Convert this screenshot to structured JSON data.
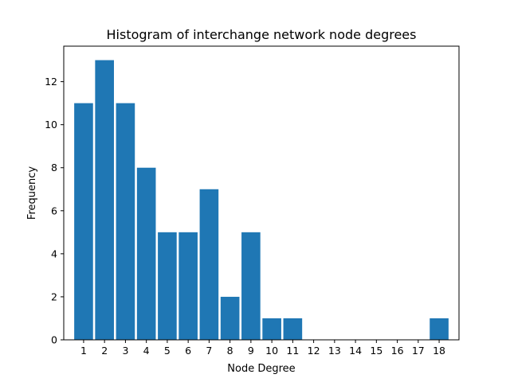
{
  "chart_data": {
    "type": "bar",
    "title": "Histogram of interchange network node degrees",
    "xlabel": "Node Degree",
    "ylabel": "Frequency",
    "categories": [
      "1",
      "2",
      "3",
      "4",
      "5",
      "6",
      "7",
      "8",
      "9",
      "10",
      "11",
      "12",
      "13",
      "14",
      "15",
      "16",
      "17",
      "18"
    ],
    "values": [
      11,
      13,
      11,
      8,
      5,
      5,
      7,
      2,
      5,
      1,
      1,
      0,
      0,
      0,
      0,
      0,
      0,
      1
    ],
    "x_ticks": [
      "1",
      "2",
      "3",
      "4",
      "5",
      "6",
      "7",
      "8",
      "9",
      "10",
      "11",
      "12",
      "13",
      "14",
      "15",
      "16",
      "17",
      "18"
    ],
    "y_ticks": [
      "0",
      "2",
      "4",
      "6",
      "8",
      "10",
      "12"
    ],
    "xlim": [
      0.05,
      18.95
    ],
    "ylim": [
      0,
      13.65
    ],
    "grid": false,
    "bar_color": "#1f77b4"
  }
}
